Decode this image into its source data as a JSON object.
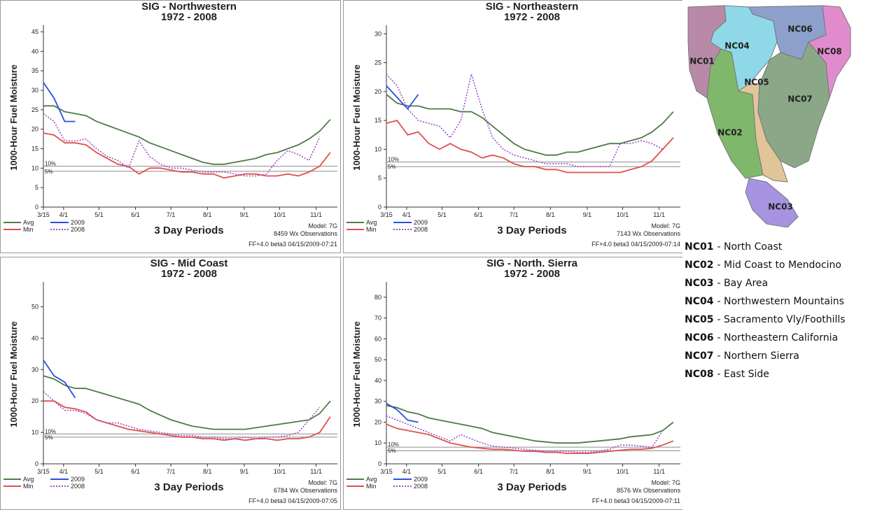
{
  "chart_data": [
    {
      "type": "line",
      "title": "SIG - Northwestern",
      "subtitle": "1972 - 2008",
      "y_label": "1000-Hour Fuel Moisture",
      "x_label": "3 Day Periods",
      "model": "Model: 7G",
      "observations": "8459 Wx Observations",
      "footer": "FF+4.0 beta3 04/15/2009-07:21",
      "x": [
        0,
        3,
        6,
        9,
        12,
        15,
        18,
        21,
        24,
        27,
        30,
        33,
        36,
        39,
        42,
        45,
        48,
        51,
        54,
        57,
        60,
        63,
        66,
        69,
        72,
        75,
        78,
        81
      ],
      "xlim": [
        0,
        83
      ],
      "xticks": [
        {
          "value": 0,
          "label": "3/15"
        },
        {
          "value": 5.7,
          "label": "4/1"
        },
        {
          "value": 15.7,
          "label": "5/1"
        },
        {
          "value": 26,
          "label": "6/1"
        },
        {
          "value": 36,
          "label": "7/1"
        },
        {
          "value": 46.3,
          "label": "8/1"
        },
        {
          "value": 56.7,
          "label": "9/1"
        },
        {
          "value": 66.7,
          "label": "10/1"
        },
        {
          "value": 77,
          "label": "11/1"
        }
      ],
      "ylim": [
        0,
        46
      ],
      "yticks": [
        0,
        5,
        10,
        15,
        20,
        25,
        30,
        35,
        40,
        45
      ],
      "reference_lines": [
        {
          "label": "10%",
          "value": 10.5
        },
        {
          "label": "5%",
          "value": 9.2
        }
      ],
      "series": [
        {
          "name": "Avg",
          "color": "#4d7b45",
          "values": [
            26,
            26,
            24.5,
            24,
            23.5,
            22,
            21,
            20,
            19,
            18,
            16.5,
            15.5,
            14.5,
            13.5,
            12.5,
            11.5,
            11,
            11,
            11.5,
            12,
            12.5,
            13.5,
            14,
            15,
            16,
            17.5,
            19.5,
            22.5
          ]
        },
        {
          "name": "Min",
          "color": "#e0504a",
          "values": [
            19,
            18.5,
            16.5,
            16.5,
            16,
            14,
            12.5,
            11,
            10.5,
            8.5,
            10,
            10,
            9.5,
            9,
            9,
            8.5,
            8.5,
            7.5,
            8,
            8.5,
            8.5,
            8,
            8,
            8.5,
            8,
            9,
            10.5,
            14
          ]
        },
        {
          "name": "2009",
          "color": "#2a4fe0",
          "values": [
            32,
            28,
            22,
            22,
            null,
            null,
            null,
            null,
            null,
            null,
            null,
            null,
            null,
            null,
            null,
            null,
            null,
            null,
            null,
            null,
            null,
            null,
            null,
            null,
            null,
            null,
            null,
            null
          ]
        },
        {
          "name": "2008",
          "color": "#9b4fc8",
          "dashed": true,
          "values": [
            24,
            22,
            17,
            17,
            17.5,
            15,
            13,
            12,
            10,
            17,
            13,
            11,
            10,
            10,
            9.5,
            9,
            9,
            9,
            8.5,
            8,
            8,
            8.5,
            12,
            14.5,
            13.5,
            12,
            18,
            null
          ]
        }
      ]
    },
    {
      "type": "line",
      "title": "SIG - Northeastern",
      "subtitle": "1972 - 2008",
      "y_label": "1000-Hour Fuel Moisture",
      "x_label": "3 Day Periods",
      "model": "Model: 7G",
      "observations": "7143 Wx Observations",
      "footer": "FF+4.0 beta3 04/15/2009-07:14",
      "x": [
        0,
        3,
        6,
        9,
        12,
        15,
        18,
        21,
        24,
        27,
        30,
        33,
        36,
        39,
        42,
        45,
        48,
        51,
        54,
        57,
        60,
        63,
        66,
        69,
        72,
        75,
        78,
        81
      ],
      "xlim": [
        0,
        83
      ],
      "xticks": [
        {
          "value": 0,
          "label": "3/15"
        },
        {
          "value": 5.7,
          "label": "4/1"
        },
        {
          "value": 15.7,
          "label": "5/1"
        },
        {
          "value": 26,
          "label": "6/1"
        },
        {
          "value": 36,
          "label": "7/1"
        },
        {
          "value": 46.3,
          "label": "8/1"
        },
        {
          "value": 56.7,
          "label": "9/1"
        },
        {
          "value": 66.7,
          "label": "10/1"
        },
        {
          "value": 77,
          "label": "11/1"
        }
      ],
      "ylim": [
        0,
        31
      ],
      "yticks": [
        0,
        5,
        10,
        15,
        20,
        25,
        30
      ],
      "reference_lines": [
        {
          "label": "10%",
          "value": 7.8
        },
        {
          "label": "5%",
          "value": 7
        }
      ],
      "series": [
        {
          "name": "Avg",
          "color": "#4d7b45",
          "values": [
            19.5,
            18,
            17.5,
            17.5,
            17,
            17,
            17,
            16.5,
            16.5,
            15.5,
            14,
            12.5,
            11,
            10,
            9.5,
            9,
            9,
            9.5,
            9.5,
            10,
            10.5,
            11,
            11,
            11.5,
            12,
            13,
            14.5,
            16.5
          ]
        },
        {
          "name": "Min",
          "color": "#e0504a",
          "values": [
            14.5,
            15,
            12.5,
            13,
            11,
            10,
            11,
            10,
            9.5,
            8.5,
            9,
            8.5,
            7.5,
            7,
            7,
            6.5,
            6.5,
            6,
            6,
            6,
            6,
            6,
            6,
            6.5,
            7,
            8,
            10,
            12
          ]
        },
        {
          "name": "2009",
          "color": "#2a4fe0",
          "values": [
            21,
            19,
            17,
            19.5,
            null,
            null,
            null,
            null,
            null,
            null,
            null,
            null,
            null,
            null,
            null,
            null,
            null,
            null,
            null,
            null,
            null,
            null,
            null,
            null,
            null,
            null,
            null,
            null
          ]
        },
        {
          "name": "2008",
          "color": "#9b4fc8",
          "dashed": true,
          "values": [
            23,
            21,
            17,
            15,
            14.5,
            14,
            12,
            15,
            23,
            17,
            12,
            10,
            9,
            8.5,
            8,
            7.5,
            7.5,
            7.5,
            7,
            7,
            7,
            7,
            11,
            11,
            11.5,
            11,
            10,
            null
          ]
        }
      ]
    },
    {
      "type": "line",
      "title": "SIG - Mid Coast",
      "subtitle": "1972 - 2008",
      "y_label": "1000-Hour Fuel Moisture",
      "x_label": "3 Day Periods",
      "model": "Model: 7G",
      "observations": "6784 Wx Observations",
      "footer": "FF+4.0 beta3 04/15/2009-07:05",
      "x": [
        0,
        3,
        6,
        9,
        12,
        15,
        18,
        21,
        24,
        27,
        30,
        33,
        36,
        39,
        42,
        45,
        48,
        51,
        54,
        57,
        60,
        63,
        66,
        69,
        72,
        75,
        78,
        81
      ],
      "xlim": [
        0,
        83
      ],
      "xticks": [
        {
          "value": 0,
          "label": "3/15"
        },
        {
          "value": 5.7,
          "label": "4/1"
        },
        {
          "value": 15.7,
          "label": "5/1"
        },
        {
          "value": 26,
          "label": "6/1"
        },
        {
          "value": 36,
          "label": "7/1"
        },
        {
          "value": 46.3,
          "label": "8/1"
        },
        {
          "value": 56.7,
          "label": "9/1"
        },
        {
          "value": 66.7,
          "label": "10/1"
        },
        {
          "value": 77,
          "label": "11/1"
        }
      ],
      "ylim": [
        0,
        57
      ],
      "yticks": [
        0,
        10,
        20,
        30,
        40,
        50
      ],
      "reference_lines": [
        {
          "label": "10%",
          "value": 9.5
        },
        {
          "label": "5%",
          "value": 8.5
        }
      ],
      "series": [
        {
          "name": "Avg",
          "color": "#4d7b45",
          "values": [
            28,
            27,
            25,
            24,
            24,
            23,
            22,
            21,
            20,
            19,
            17,
            15.5,
            14,
            13,
            12,
            11.5,
            11,
            11,
            11,
            11,
            11.5,
            12,
            12.5,
            13,
            13.5,
            14,
            16,
            20
          ]
        },
        {
          "name": "Min",
          "color": "#e0504a",
          "values": [
            20,
            20,
            18,
            17.5,
            16.5,
            14,
            13,
            12,
            11,
            10.5,
            10,
            9.5,
            9,
            8.5,
            8.5,
            8,
            8,
            7.5,
            8,
            7.5,
            8,
            8,
            7.5,
            8,
            8,
            8.5,
            10,
            15
          ]
        },
        {
          "name": "2009",
          "color": "#2a4fe0",
          "values": [
            33,
            28,
            26,
            21,
            null,
            null,
            null,
            null,
            null,
            null,
            null,
            null,
            null,
            null,
            null,
            null,
            null,
            null,
            null,
            null,
            null,
            null,
            null,
            null,
            null,
            null,
            null,
            null
          ]
        },
        {
          "name": "2008",
          "color": "#9b4fc8",
          "dashed": true,
          "values": [
            23,
            20,
            17,
            17,
            16,
            14,
            13,
            13,
            12,
            11,
            10.5,
            10,
            9.5,
            9,
            9,
            8.5,
            8.5,
            8,
            8,
            8.5,
            8,
            8.5,
            8.5,
            9,
            10,
            14,
            18,
            null
          ]
        }
      ]
    },
    {
      "type": "line",
      "title": "SIG - North. Sierra",
      "subtitle": "1972 - 2008",
      "y_label": "1000-Hour Fuel Moisture",
      "x_label": "3 Day Periods",
      "model": "Model: 7G",
      "observations": "8576 Wx Observations",
      "footer": "FF+4.0 beta3 04/15/2009-07:11",
      "x": [
        0,
        3,
        6,
        9,
        12,
        15,
        18,
        21,
        24,
        27,
        30,
        33,
        36,
        39,
        42,
        45,
        48,
        51,
        54,
        57,
        60,
        63,
        66,
        69,
        72,
        75,
        78,
        81
      ],
      "xlim": [
        0,
        83
      ],
      "xticks": [
        {
          "value": 0,
          "label": "3/15"
        },
        {
          "value": 5.7,
          "label": "4/1"
        },
        {
          "value": 15.7,
          "label": "5/1"
        },
        {
          "value": 26,
          "label": "6/1"
        },
        {
          "value": 36,
          "label": "7/1"
        },
        {
          "value": 46.3,
          "label": "8/1"
        },
        {
          "value": 56.7,
          "label": "9/1"
        },
        {
          "value": 66.7,
          "label": "10/1"
        },
        {
          "value": 77,
          "label": "11/1"
        }
      ],
      "ylim": [
        0,
        86
      ],
      "yticks": [
        0,
        10,
        20,
        30,
        40,
        50,
        60,
        70,
        80
      ],
      "reference_lines": [
        {
          "label": "10%",
          "value": 8
        },
        {
          "label": "5%",
          "value": 6.3
        }
      ],
      "series": [
        {
          "name": "Avg",
          "color": "#4d7b45",
          "values": [
            28,
            27,
            25,
            24,
            22,
            21,
            20,
            19,
            18,
            17,
            15,
            14,
            13,
            12,
            11,
            10.5,
            10,
            10,
            10,
            10.5,
            11,
            11.5,
            12,
            13,
            13.5,
            14,
            16,
            20
          ]
        },
        {
          "name": "Min",
          "color": "#e0504a",
          "values": [
            19,
            17,
            16,
            15,
            14,
            12,
            10,
            9,
            8,
            7.5,
            7,
            7,
            6.5,
            6,
            6,
            5.5,
            5.5,
            5,
            5,
            5,
            5.5,
            6,
            6.5,
            7,
            7,
            7.5,
            9,
            11
          ]
        },
        {
          "name": "2009",
          "color": "#2a4fe0",
          "values": [
            29,
            26,
            21,
            20,
            null,
            null,
            null,
            null,
            null,
            null,
            null,
            null,
            null,
            null,
            null,
            null,
            null,
            null,
            null,
            null,
            null,
            null,
            null,
            null,
            null,
            null,
            null,
            null
          ]
        },
        {
          "name": "2008",
          "color": "#9b4fc8",
          "dashed": true,
          "values": [
            23,
            21,
            19,
            17,
            15,
            13,
            11,
            14,
            12,
            10,
            8.5,
            8,
            7.5,
            7,
            6.5,
            6,
            6,
            6,
            5.5,
            5.5,
            6,
            7,
            9,
            9,
            8.5,
            8,
            16,
            null
          ]
        }
      ]
    }
  ],
  "map": {
    "regions": [
      "NC01",
      "NC02",
      "NC03",
      "NC04",
      "NC05",
      "NC06",
      "NC07",
      "NC08"
    ],
    "legend": [
      {
        "code": "NC01",
        "name": "- North Coast"
      },
      {
        "code": "NC02",
        "name": "- Mid Coast to Mendocino"
      },
      {
        "code": "NC03",
        "name": "- Bay Area"
      },
      {
        "code": "NC04",
        "name": "- Northwestern Mountains"
      },
      {
        "code": "NC05",
        "name": "- Sacramento Vly/Foothills"
      },
      {
        "code": "NC06",
        "name": "- Northeastern California"
      },
      {
        "code": "NC07",
        "name": "- Northern Sierra"
      },
      {
        "code": "NC08",
        "name": "- East Side"
      }
    ]
  }
}
